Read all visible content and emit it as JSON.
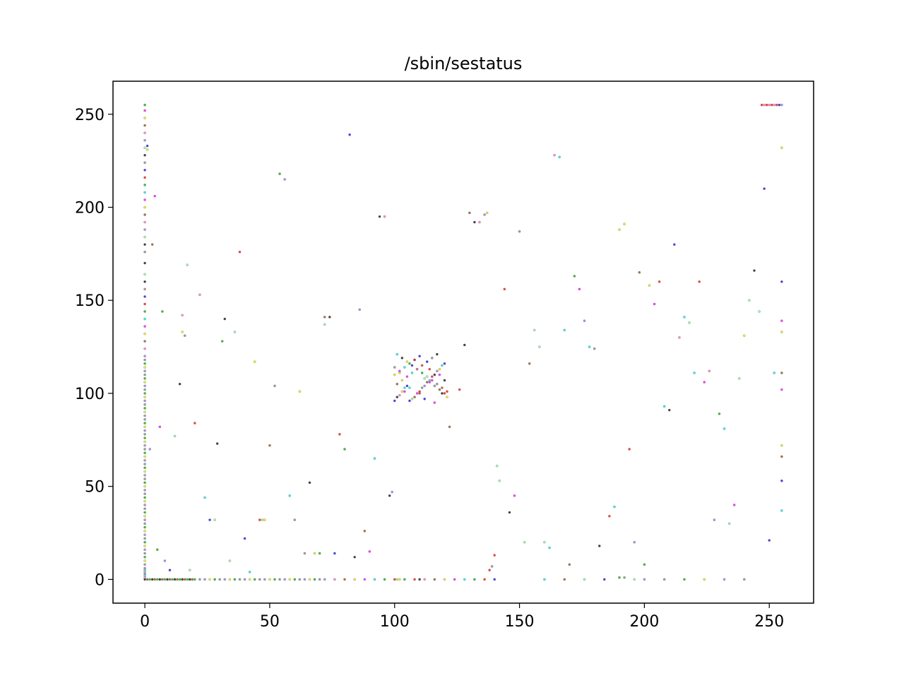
{
  "chart_data": {
    "type": "scatter",
    "title": "/sbin/sestatus",
    "xlabel": "",
    "ylabel": "",
    "xlim": [
      -12.75,
      267.75
    ],
    "ylim": [
      -12.75,
      267.75
    ],
    "x_ticks": [
      0,
      50,
      100,
      150,
      200,
      250
    ],
    "y_ticks": [
      0,
      50,
      100,
      150,
      200,
      250
    ],
    "x_tick_labels": [
      "0",
      "50",
      "100",
      "150",
      "200",
      "250"
    ],
    "y_tick_labels": [
      "0",
      "50",
      "100",
      "150",
      "200",
      "250"
    ],
    "grid": false,
    "legend": "none",
    "marker": "small dots, per-point color",
    "point_colors": [
      "#000000",
      "#7f7f7f",
      "#0000ff",
      "#ff0000",
      "#00aa00",
      "#00e5e5",
      "#ff00ff",
      "#e5e500",
      "#8b4513",
      "#ff69b4",
      "#9370db",
      "#90ee90"
    ],
    "points": [
      [
        0,
        0
      ],
      [
        1,
        0
      ],
      [
        2,
        0
      ],
      [
        3,
        0
      ],
      [
        4,
        0
      ],
      [
        5,
        0
      ],
      [
        6,
        0
      ],
      [
        7,
        0
      ],
      [
        8,
        0
      ],
      [
        9,
        0
      ],
      [
        10,
        0
      ],
      [
        11,
        0
      ],
      [
        12,
        0
      ],
      [
        13,
        0
      ],
      [
        14,
        0
      ],
      [
        15,
        0
      ],
      [
        16,
        0
      ],
      [
        17,
        0
      ],
      [
        18,
        0
      ],
      [
        19,
        0
      ],
      [
        20,
        0
      ],
      [
        22,
        0
      ],
      [
        24,
        0
      ],
      [
        26,
        0
      ],
      [
        28,
        0
      ],
      [
        30,
        0
      ],
      [
        32,
        0
      ],
      [
        34,
        0
      ],
      [
        36,
        0
      ],
      [
        38,
        0
      ],
      [
        40,
        0
      ],
      [
        42,
        0
      ],
      [
        44,
        0
      ],
      [
        46,
        0
      ],
      [
        48,
        0
      ],
      [
        50,
        0
      ],
      [
        52,
        0
      ],
      [
        54,
        0
      ],
      [
        56,
        0
      ],
      [
        58,
        0
      ],
      [
        60,
        0
      ],
      [
        62,
        0
      ],
      [
        64,
        0
      ],
      [
        66,
        0
      ],
      [
        68,
        0
      ],
      [
        70,
        0
      ],
      [
        72,
        0
      ],
      [
        76,
        0
      ],
      [
        80,
        0
      ],
      [
        84,
        0
      ],
      [
        88,
        0
      ],
      [
        92,
        0
      ],
      [
        96,
        0
      ],
      [
        100,
        0
      ],
      [
        101,
        0
      ],
      [
        102,
        0
      ],
      [
        104,
        0
      ],
      [
        108,
        0
      ],
      [
        110,
        0
      ],
      [
        112,
        0
      ],
      [
        116,
        0
      ],
      [
        120,
        0
      ],
      [
        124,
        0
      ],
      [
        128,
        0
      ],
      [
        132,
        0
      ],
      [
        136,
        0
      ],
      [
        140,
        0
      ],
      [
        160,
        0
      ],
      [
        168,
        0
      ],
      [
        176,
        0
      ],
      [
        184,
        0
      ],
      [
        190,
        1
      ],
      [
        192,
        1
      ],
      [
        196,
        0
      ],
      [
        200,
        0
      ],
      [
        208,
        0
      ],
      [
        216,
        0
      ],
      [
        224,
        0
      ],
      [
        232,
        0
      ],
      [
        240,
        0
      ],
      [
        0,
        1
      ],
      [
        0,
        2
      ],
      [
        0,
        3
      ],
      [
        0,
        4
      ],
      [
        0,
        5
      ],
      [
        0,
        6
      ],
      [
        0,
        8
      ],
      [
        0,
        10
      ],
      [
        0,
        12
      ],
      [
        0,
        14
      ],
      [
        0,
        16
      ],
      [
        0,
        18
      ],
      [
        0,
        20
      ],
      [
        0,
        22
      ],
      [
        0,
        24
      ],
      [
        0,
        26
      ],
      [
        0,
        28
      ],
      [
        0,
        30
      ],
      [
        0,
        32
      ],
      [
        0,
        34
      ],
      [
        0,
        36
      ],
      [
        0,
        38
      ],
      [
        0,
        40
      ],
      [
        0,
        42
      ],
      [
        0,
        44
      ],
      [
        0,
        46
      ],
      [
        0,
        48
      ],
      [
        0,
        50
      ],
      [
        0,
        52
      ],
      [
        0,
        54
      ],
      [
        0,
        56
      ],
      [
        0,
        58
      ],
      [
        0,
        60
      ],
      [
        0,
        62
      ],
      [
        0,
        64
      ],
      [
        0,
        66
      ],
      [
        0,
        68
      ],
      [
        0,
        70
      ],
      [
        0,
        72
      ],
      [
        0,
        74
      ],
      [
        0,
        76
      ],
      [
        0,
        78
      ],
      [
        0,
        80
      ],
      [
        0,
        82
      ],
      [
        0,
        84
      ],
      [
        0,
        86
      ],
      [
        0,
        88
      ],
      [
        0,
        90
      ],
      [
        0,
        92
      ],
      [
        0,
        94
      ],
      [
        0,
        96
      ],
      [
        0,
        98
      ],
      [
        0,
        100
      ],
      [
        0,
        102
      ],
      [
        0,
        104
      ],
      [
        0,
        106
      ],
      [
        0,
        108
      ],
      [
        0,
        110
      ],
      [
        0,
        112
      ],
      [
        0,
        114
      ],
      [
        0,
        116
      ],
      [
        0,
        118
      ],
      [
        0,
        120
      ],
      [
        0,
        124
      ],
      [
        0,
        128
      ],
      [
        0,
        132
      ],
      [
        0,
        136
      ],
      [
        0,
        140
      ],
      [
        0,
        144
      ],
      [
        0,
        148
      ],
      [
        0,
        152
      ],
      [
        0,
        156
      ],
      [
        0,
        160
      ],
      [
        0,
        164
      ],
      [
        0,
        170
      ],
      [
        0,
        176
      ],
      [
        0,
        180
      ],
      [
        0,
        184
      ],
      [
        0,
        188
      ],
      [
        0,
        192
      ],
      [
        0,
        196
      ],
      [
        0,
        200
      ],
      [
        0,
        204
      ],
      [
        0,
        208
      ],
      [
        0,
        212
      ],
      [
        0,
        216
      ],
      [
        0,
        220
      ],
      [
        0,
        224
      ],
      [
        0,
        228
      ],
      [
        0,
        232
      ],
      [
        0,
        236
      ],
      [
        0,
        240
      ],
      [
        0,
        244
      ],
      [
        0,
        248
      ],
      [
        0,
        252
      ],
      [
        0,
        255
      ],
      [
        1,
        233
      ],
      [
        1,
        231
      ],
      [
        2,
        70
      ],
      [
        3,
        180
      ],
      [
        4,
        206
      ],
      [
        5,
        16
      ],
      [
        6,
        82
      ],
      [
        7,
        144
      ],
      [
        8,
        10
      ],
      [
        10,
        5
      ],
      [
        12,
        77
      ],
      [
        14,
        105
      ],
      [
        15,
        142
      ],
      [
        15,
        133
      ],
      [
        16,
        131
      ],
      [
        17,
        169
      ],
      [
        18,
        5
      ],
      [
        20,
        84
      ],
      [
        22,
        153
      ],
      [
        24,
        44
      ],
      [
        26,
        32
      ],
      [
        28,
        32
      ],
      [
        29,
        73
      ],
      [
        31,
        128
      ],
      [
        32,
        140
      ],
      [
        34,
        10
      ],
      [
        36,
        133
      ],
      [
        38,
        176
      ],
      [
        40,
        22
      ],
      [
        42,
        4
      ],
      [
        44,
        117
      ],
      [
        46,
        32
      ],
      [
        47,
        32
      ],
      [
        48,
        32
      ],
      [
        50,
        72
      ],
      [
        52,
        104
      ],
      [
        54,
        218
      ],
      [
        56,
        215
      ],
      [
        58,
        45
      ],
      [
        60,
        32
      ],
      [
        62,
        101
      ],
      [
        64,
        14
      ],
      [
        66,
        52
      ],
      [
        68,
        14
      ],
      [
        70,
        14
      ],
      [
        72,
        141
      ],
      [
        72,
        137
      ],
      [
        74,
        141
      ],
      [
        76,
        14
      ],
      [
        78,
        78
      ],
      [
        80,
        70
      ],
      [
        82,
        239
      ],
      [
        84,
        12
      ],
      [
        86,
        145
      ],
      [
        88,
        26
      ],
      [
        90,
        15
      ],
      [
        92,
        65
      ],
      [
        94,
        195
      ],
      [
        96,
        195
      ],
      [
        98,
        45
      ],
      [
        99,
        47
      ],
      [
        100,
        114
      ],
      [
        102,
        111
      ],
      [
        104,
        101
      ],
      [
        106,
        103
      ],
      [
        108,
        118
      ],
      [
        110,
        100
      ],
      [
        112,
        97
      ],
      [
        114,
        113
      ],
      [
        116,
        95
      ],
      [
        118,
        110
      ],
      [
        120,
        107
      ],
      [
        122,
        82
      ],
      [
        126,
        102
      ],
      [
        128,
        126
      ],
      [
        130,
        197
      ],
      [
        132,
        192
      ],
      [
        134,
        192
      ],
      [
        136,
        196
      ],
      [
        137,
        197
      ],
      [
        138,
        5
      ],
      [
        139,
        7
      ],
      [
        140,
        13
      ],
      [
        141,
        61
      ],
      [
        142,
        53
      ],
      [
        144,
        156
      ],
      [
        146,
        36
      ],
      [
        148,
        45
      ],
      [
        150,
        187
      ],
      [
        152,
        20
      ],
      [
        154,
        116
      ],
      [
        156,
        134
      ],
      [
        158,
        125
      ],
      [
        160,
        20
      ],
      [
        162,
        17
      ],
      [
        164,
        228
      ],
      [
        166,
        227
      ],
      [
        168,
        134
      ],
      [
        170,
        8
      ],
      [
        172,
        163
      ],
      [
        174,
        156
      ],
      [
        176,
        139
      ],
      [
        178,
        125
      ],
      [
        180,
        124
      ],
      [
        182,
        18
      ],
      [
        186,
        34
      ],
      [
        188,
        39
      ],
      [
        190,
        188
      ],
      [
        192,
        191
      ],
      [
        194,
        70
      ],
      [
        196,
        20
      ],
      [
        198,
        165
      ],
      [
        200,
        8
      ],
      [
        202,
        158
      ],
      [
        204,
        148
      ],
      [
        206,
        160
      ],
      [
        208,
        93
      ],
      [
        210,
        91
      ],
      [
        212,
        180
      ],
      [
        214,
        130
      ],
      [
        216,
        141
      ],
      [
        218,
        138
      ],
      [
        220,
        111
      ],
      [
        222,
        160
      ],
      [
        224,
        106
      ],
      [
        226,
        112
      ],
      [
        228,
        32
      ],
      [
        230,
        89
      ],
      [
        232,
        81
      ],
      [
        234,
        30
      ],
      [
        236,
        40
      ],
      [
        238,
        108
      ],
      [
        240,
        131
      ],
      [
        242,
        150
      ],
      [
        244,
        166
      ],
      [
        246,
        144
      ],
      [
        248,
        210
      ],
      [
        250,
        21
      ],
      [
        252,
        111
      ],
      [
        254,
        255
      ],
      [
        255,
        255
      ],
      [
        253,
        255
      ],
      [
        252,
        255
      ],
      [
        251,
        255
      ],
      [
        250,
        255
      ],
      [
        249,
        255
      ],
      [
        248,
        255
      ],
      [
        247,
        255
      ],
      [
        255,
        232
      ],
      [
        255,
        160
      ],
      [
        255,
        111
      ],
      [
        255,
        102
      ],
      [
        255,
        72
      ],
      [
        255,
        66
      ],
      [
        255,
        53
      ],
      [
        255,
        37
      ],
      [
        255,
        139
      ],
      [
        255,
        133
      ],
      [
        100,
        96
      ],
      [
        101,
        98
      ],
      [
        102,
        99
      ],
      [
        103,
        101
      ],
      [
        104,
        103
      ],
      [
        105,
        104
      ],
      [
        106,
        96
      ],
      [
        107,
        97
      ],
      [
        108,
        98
      ],
      [
        109,
        100
      ],
      [
        110,
        101
      ],
      [
        111,
        103
      ],
      [
        112,
        104
      ],
      [
        113,
        106
      ],
      [
        114,
        107
      ],
      [
        115,
        109
      ],
      [
        116,
        110
      ],
      [
        117,
        112
      ],
      [
        118,
        113
      ],
      [
        119,
        115
      ],
      [
        120,
        116
      ],
      [
        100,
        110
      ],
      [
        102,
        112
      ],
      [
        104,
        114
      ],
      [
        106,
        116
      ],
      [
        108,
        118
      ],
      [
        110,
        120
      ],
      [
        112,
        108
      ],
      [
        114,
        106
      ],
      [
        116,
        104
      ],
      [
        118,
        102
      ],
      [
        120,
        100
      ],
      [
        101,
        105
      ],
      [
        103,
        107
      ],
      [
        105,
        109
      ],
      [
        107,
        111
      ],
      [
        109,
        113
      ],
      [
        111,
        115
      ],
      [
        113,
        117
      ],
      [
        115,
        119
      ],
      [
        117,
        121
      ],
      [
        119,
        100
      ],
      [
        121,
        98
      ],
      [
        101,
        121
      ],
      [
        103,
        119
      ],
      [
        105,
        117
      ],
      [
        107,
        115
      ],
      [
        109,
        113
      ],
      [
        111,
        111
      ],
      [
        113,
        109
      ],
      [
        115,
        107
      ],
      [
        117,
        105
      ],
      [
        119,
        103
      ],
      [
        121,
        101
      ]
    ]
  }
}
